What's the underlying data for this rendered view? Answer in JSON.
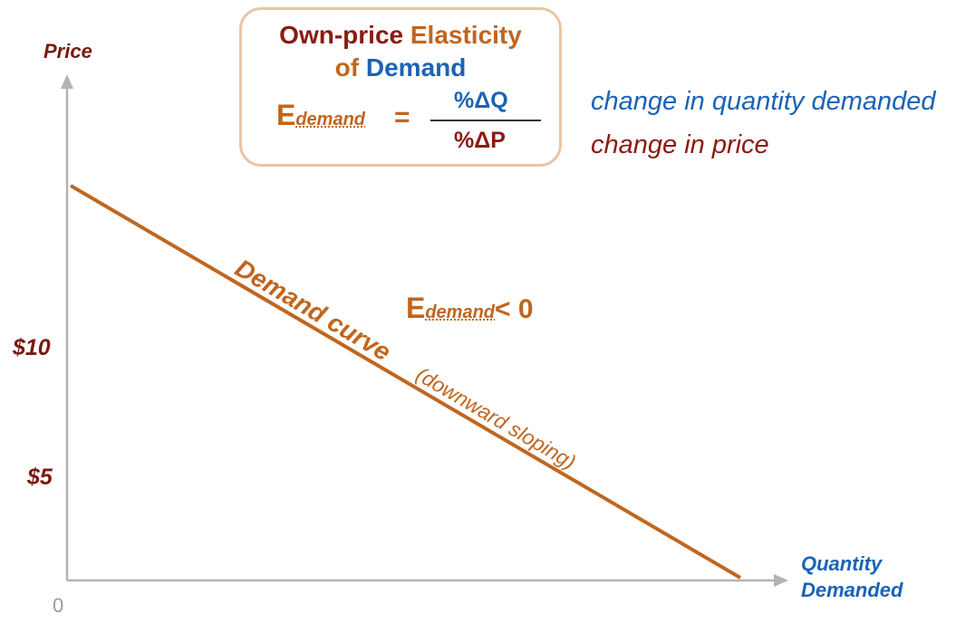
{
  "axes": {
    "y_label": "Price",
    "x_label_line1": "Quantity",
    "x_label_line2": "Demanded",
    "origin": "0",
    "ticks": [
      "$10",
      "$5"
    ]
  },
  "formula_box": {
    "title_part1": "Own-price",
    "title_part2": "Elasticity",
    "title_part3": "of",
    "title_part4": "Demand",
    "e_symbol": "E",
    "e_subscript": "demand",
    "equals": "=",
    "numerator": "%ΔQ",
    "denominator": "%ΔP"
  },
  "explanations": {
    "numerator_text": "change in quantity demanded",
    "denominator_text": "change in price"
  },
  "curve": {
    "name": "Demand curve",
    "note": "(downward sloping)",
    "color": "#c0661f"
  },
  "inequality": {
    "e_symbol": "E",
    "e_subscript": "demand",
    "relation": "< 0"
  },
  "colors": {
    "dark_red": "#8b1a12",
    "orange": "#c0661f",
    "blue": "#1a63b5",
    "axis_gray": "#b3b3b3"
  }
}
